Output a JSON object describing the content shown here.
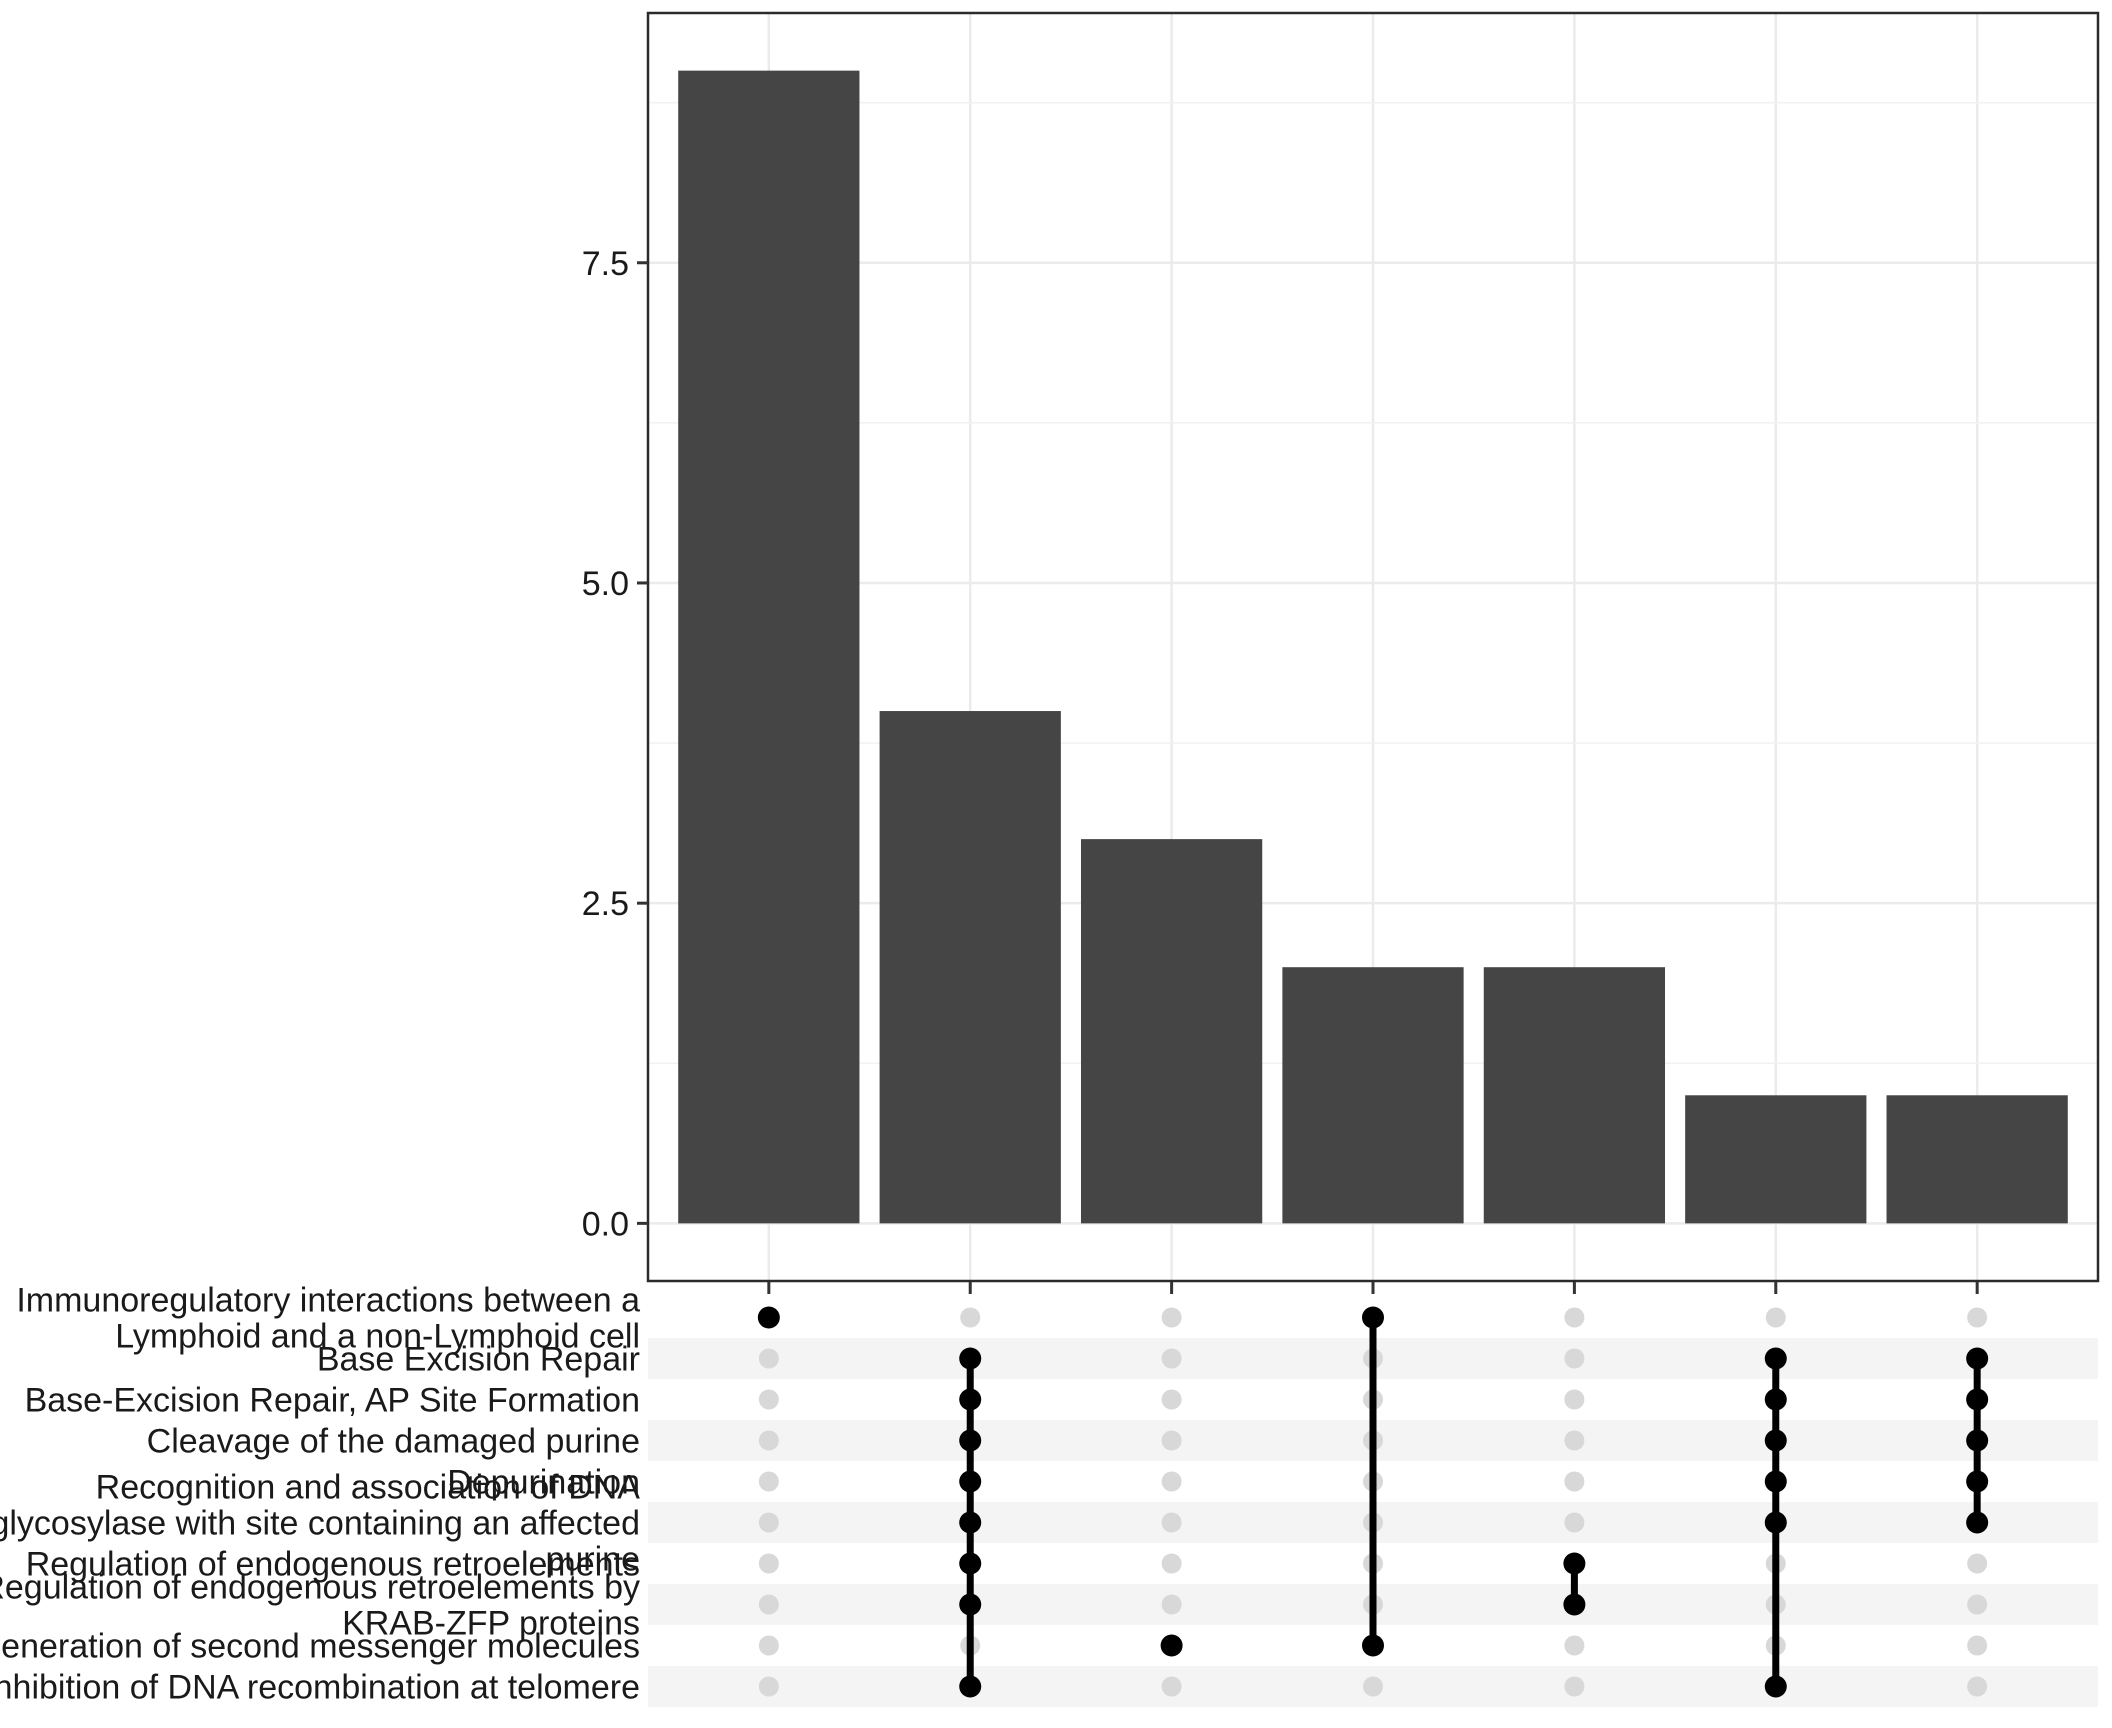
{
  "chart_data": {
    "type": "bar",
    "subtype": "upset-plot",
    "title": "",
    "xlabel": "",
    "ylabel": "",
    "ylim": [
      -0.45,
      9.45
    ],
    "yticks": [
      0,
      2.5,
      5,
      7.5
    ],
    "ytick_labels": [
      "0.0",
      "2.5",
      "5.0",
      "7.5"
    ],
    "yticks_minor": [
      1.25,
      3.75,
      6.25,
      8.75
    ],
    "grid": true,
    "legend": false,
    "values": [
      9,
      4,
      3,
      2,
      2,
      1,
      1
    ],
    "sets": [
      {
        "label_lines": [
          "Immunoregulatory interactions between a",
          "Lymphoid and a non-Lymphoid cell"
        ]
      },
      {
        "label_lines": [
          "Base Excision Repair"
        ]
      },
      {
        "label_lines": [
          "Base-Excision Repair, AP Site Formation"
        ]
      },
      {
        "label_lines": [
          "Cleavage of the damaged purine"
        ]
      },
      {
        "label_lines": [
          "Depurination"
        ]
      },
      {
        "label_lines": [
          "Recognition and association of DNA",
          "glycosylase with site containing an affected",
          "purine"
        ]
      },
      {
        "label_lines": [
          "Regulation of endogenous retroelements"
        ]
      },
      {
        "label_lines": [
          "Regulation of endogenous retroelements by",
          "KRAB-ZFP proteins"
        ]
      },
      {
        "label_lines": [
          "Generation of second messenger molecules"
        ]
      },
      {
        "label_lines": [
          "Inhibition of DNA recombination at telomere"
        ]
      }
    ],
    "intersections": [
      {
        "size": 9,
        "member_rows": [
          0
        ]
      },
      {
        "size": 4,
        "member_rows": [
          1,
          2,
          3,
          4,
          5,
          6,
          7,
          9
        ]
      },
      {
        "size": 3,
        "member_rows": [
          8
        ]
      },
      {
        "size": 2,
        "member_rows": [
          0,
          8
        ]
      },
      {
        "size": 2,
        "member_rows": [
          6,
          7
        ]
      },
      {
        "size": 1,
        "member_rows": [
          1,
          2,
          3,
          4,
          5,
          9
        ]
      },
      {
        "size": 1,
        "member_rows": [
          1,
          2,
          3,
          4,
          5
        ]
      }
    ],
    "colors": {
      "bar_fill": "#454545",
      "dot_active": "#000000",
      "dot_inactive": "#D8D8D8",
      "row_stripe": "#F4F4F4",
      "grid_major": "#EBEBEB",
      "grid_minor": "#F2F2F2",
      "panel_border": "#2B2B2B",
      "axis_text": "#1A1A1A",
      "tick_mark": "#333333"
    }
  }
}
